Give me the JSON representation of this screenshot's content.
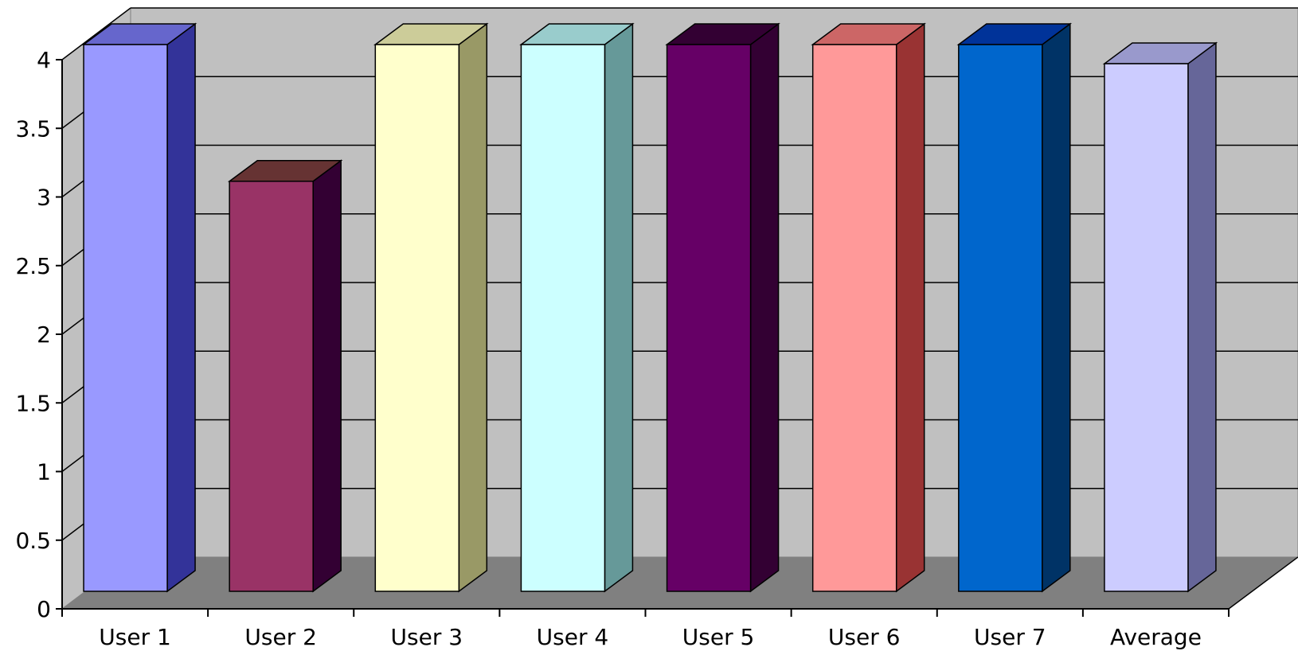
{
  "chart_data": {
    "type": "bar",
    "style": "3d-column",
    "categories": [
      "User 1",
      "User 2",
      "User 3",
      "User 4",
      "User 5",
      "User 6",
      "User 7",
      "Average"
    ],
    "values": [
      4,
      3,
      4,
      4,
      4,
      4,
      4,
      3.86
    ],
    "colors": [
      {
        "front": "#9999FF",
        "side": "#333399",
        "top": "#6666CC"
      },
      {
        "front": "#993366",
        "side": "#330033",
        "top": "#663333"
      },
      {
        "front": "#FFFFCC",
        "side": "#999966",
        "top": "#CCCC99"
      },
      {
        "front": "#CCFFFF",
        "side": "#669999",
        "top": "#99CCCC"
      },
      {
        "front": "#660066",
        "side": "#330033",
        "top": "#330033"
      },
      {
        "front": "#FF9999",
        "side": "#993333",
        "top": "#CC6666"
      },
      {
        "front": "#0066CC",
        "side": "#003366",
        "top": "#003399"
      },
      {
        "front": "#CCCCFF",
        "side": "#666699",
        "top": "#9999CC"
      }
    ],
    "ylim": [
      0,
      4
    ],
    "yticks": [
      0,
      0.5,
      1,
      1.5,
      2,
      2.5,
      3,
      3.5,
      4
    ],
    "ytick_labels": [
      "0",
      "0.5",
      "1",
      "1.5",
      "2",
      "2.5",
      "3",
      "3.5",
      "4"
    ],
    "grid": true,
    "legend": "none",
    "wall_color": "#C0C0C0",
    "floor_color": "#808080",
    "title": "",
    "xlabel": "",
    "ylabel": ""
  }
}
